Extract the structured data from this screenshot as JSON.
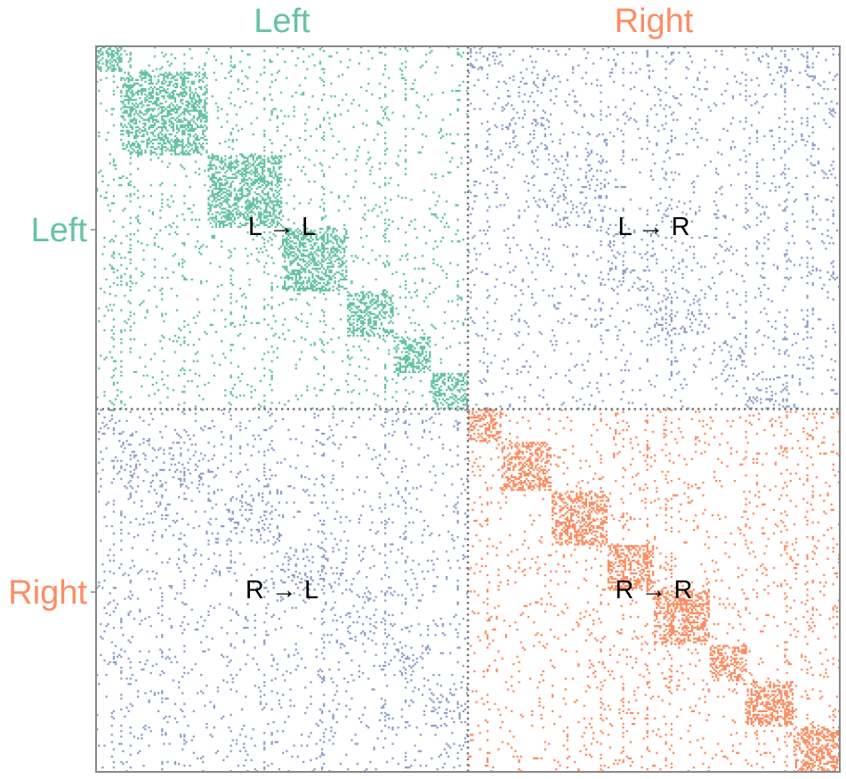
{
  "chart_data": {
    "type": "heatmap",
    "title": "",
    "col_labels": [
      "Left",
      "Right"
    ],
    "row_labels": [
      "Left",
      "Right"
    ],
    "block_labels": [
      {
        "row": "Left",
        "col": "Left",
        "text": "L → L"
      },
      {
        "row": "Left",
        "col": "Right",
        "text": "L → R"
      },
      {
        "row": "Right",
        "col": "Left",
        "text": "R → L"
      },
      {
        "row": "Right",
        "col": "Right",
        "text": "R → R"
      }
    ],
    "n_nodes_per_hemisphere": 200,
    "value_encoding": "binary adjacency (dot = connection present)",
    "colors": {
      "left_ipsilateral": "#66c2a5",
      "right_ipsilateral": "#fc8d62",
      "contralateral": "#8da0cb",
      "divider": "#777777",
      "frame": "#888888"
    },
    "clusters": {
      "left": [
        [
          0,
          14
        ],
        [
          14,
          60
        ],
        [
          60,
          100
        ],
        [
          100,
          135
        ],
        [
          135,
          160
        ],
        [
          160,
          180
        ],
        [
          180,
          200
        ]
      ],
      "right": [
        [
          0,
          18
        ],
        [
          18,
          45
        ],
        [
          45,
          75
        ],
        [
          75,
          100
        ],
        [
          100,
          130
        ],
        [
          130,
          150
        ],
        [
          150,
          175
        ],
        [
          175,
          200
        ]
      ]
    },
    "density": {
      "within_cluster": 0.42,
      "left_right_hub_columns": 0.22,
      "background": 0.035
    }
  }
}
